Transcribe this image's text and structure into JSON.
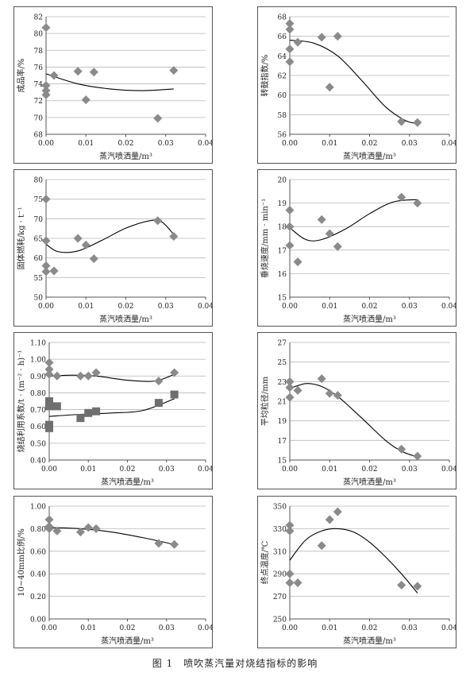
{
  "figure_caption": "图 1　喷吹蒸汽量对烧结指标的影响",
  "colors": {
    "diamond": "#8a8a8a",
    "square": "#6f6f6f",
    "grid": "#b8b8b8",
    "axis": "#555555",
    "curve": "#000000"
  },
  "chart_data": [
    {
      "type": "scatter",
      "xlabel": "蒸汽喷洒量/m³",
      "ylabel": "成品率/%",
      "xlim": [
        0,
        0.04
      ],
      "xticks": [
        "0.00",
        "0.01",
        "0.02",
        "0.03",
        "0.04"
      ],
      "ylim": [
        68,
        82
      ],
      "yticks": [
        "68",
        "70",
        "72",
        "74",
        "76",
        "78",
        "80",
        "82"
      ],
      "grid": "horizontal",
      "series": [
        {
          "marker": "diamond",
          "points": [
            [
              0,
              80.7
            ],
            [
              0,
              73.8
            ],
            [
              0,
              73.2
            ],
            [
              0,
              72.7
            ],
            [
              0.002,
              75.0
            ],
            [
              0.008,
              75.5
            ],
            [
              0.012,
              75.4
            ],
            [
              0.01,
              72.1
            ],
            [
              0.028,
              69.9
            ],
            [
              0.032,
              75.6
            ]
          ],
          "trend": [
            [
              0,
              75.2
            ],
            [
              0.008,
              74.0
            ],
            [
              0.016,
              73.4
            ],
            [
              0.024,
              73.2
            ],
            [
              0.032,
              73.4
            ]
          ]
        }
      ]
    },
    {
      "type": "scatter",
      "xlabel": "蒸汽喷洒量/m³",
      "ylabel": "转鼓指数/%",
      "xlim": [
        0,
        0.04
      ],
      "xticks": [
        "0.00",
        "0.01",
        "0.02",
        "0.03",
        "0.04"
      ],
      "ylim": [
        56,
        68
      ],
      "yticks": [
        "56",
        "58",
        "60",
        "62",
        "64",
        "66",
        "68"
      ],
      "grid": "horizontal",
      "series": [
        {
          "marker": "diamond",
          "points": [
            [
              0,
              67.3
            ],
            [
              0,
              66.7
            ],
            [
              0,
              64.7
            ],
            [
              0,
              63.4
            ],
            [
              0.002,
              65.4
            ],
            [
              0.008,
              65.9
            ],
            [
              0.012,
              66.0
            ],
            [
              0.01,
              60.8
            ],
            [
              0.028,
              57.3
            ],
            [
              0.032,
              57.2
            ]
          ],
          "trend": [
            [
              0,
              65.6
            ],
            [
              0.006,
              65.3
            ],
            [
              0.012,
              64.0
            ],
            [
              0.018,
              61.5
            ],
            [
              0.024,
              58.8
            ],
            [
              0.029,
              57.4
            ],
            [
              0.032,
              57.1
            ]
          ]
        }
      ]
    },
    {
      "type": "scatter",
      "xlabel": "蒸汽喷洒量/m³",
      "ylabel": "固体燃耗/kg · t⁻¹",
      "xlim": [
        0,
        0.04
      ],
      "xticks": [
        "0.00",
        "0.01",
        "0.02",
        "0.03",
        "0.04"
      ],
      "ylim": [
        50,
        80
      ],
      "yticks": [
        "50",
        "55",
        "60",
        "65",
        "70",
        "75",
        "80"
      ],
      "grid": "horizontal",
      "series": [
        {
          "marker": "diamond",
          "points": [
            [
              0,
              75.0
            ],
            [
              0,
              64.4
            ],
            [
              0,
              58.0
            ],
            [
              0,
              56.5
            ],
            [
              0.002,
              56.7
            ],
            [
              0.008,
              65.0
            ],
            [
              0.01,
              63.3
            ],
            [
              0.012,
              59.8
            ],
            [
              0.028,
              69.5
            ],
            [
              0.032,
              65.5
            ]
          ],
          "trend": [
            [
              0,
              63.5
            ],
            [
              0.003,
              61.6
            ],
            [
              0.008,
              61.8
            ],
            [
              0.014,
              64.5
            ],
            [
              0.02,
              67.6
            ],
            [
              0.026,
              69.5
            ],
            [
              0.029,
              69.2
            ],
            [
              0.032,
              66.0
            ]
          ]
        }
      ]
    },
    {
      "type": "scatter",
      "xlabel": "蒸汽喷洒量/m³",
      "ylabel": "垂烧速度/mm · min⁻¹",
      "xlim": [
        0,
        0.04
      ],
      "xticks": [
        "0.00",
        "0.01",
        "0.02",
        "0.03",
        "0.04"
      ],
      "ylim": [
        15,
        20
      ],
      "yticks": [
        "15",
        "16",
        "17",
        "18",
        "19",
        "20"
      ],
      "grid": "horizontal",
      "series": [
        {
          "marker": "diamond",
          "points": [
            [
              0,
              18.7
            ],
            [
              0,
              18.0
            ],
            [
              0,
              17.2
            ],
            [
              0.002,
              16.5
            ],
            [
              0.008,
              18.3
            ],
            [
              0.01,
              17.7
            ],
            [
              0.012,
              17.15
            ],
            [
              0.028,
              19.25
            ],
            [
              0.032,
              19.0
            ]
          ],
          "trend": [
            [
              0,
              17.95
            ],
            [
              0.004,
              17.45
            ],
            [
              0.008,
              17.45
            ],
            [
              0.014,
              17.9
            ],
            [
              0.02,
              18.55
            ],
            [
              0.026,
              19.05
            ],
            [
              0.032,
              19.15
            ]
          ]
        }
      ]
    },
    {
      "type": "scatter",
      "xlabel": "蒸汽喷洒量/m³",
      "ylabel": "烧结利用系数/t · (m⁻² · h)⁻¹",
      "xlim": [
        0,
        0.04
      ],
      "xticks": [
        "0.00",
        "0.01",
        "0.02",
        "0.03",
        "0.04"
      ],
      "ylim": [
        0.4,
        1.1
      ],
      "yticks": [
        "0.40",
        "0.50",
        "0.60",
        "0.70",
        "0.80",
        "0.90",
        "1.00",
        "1.10"
      ],
      "grid": "horizontal",
      "series": [
        {
          "marker": "diamond",
          "points": [
            [
              0,
              0.98
            ],
            [
              0,
              0.94
            ],
            [
              0,
              0.91
            ],
            [
              0.002,
              0.9
            ],
            [
              0.008,
              0.9
            ],
            [
              0.01,
              0.9
            ],
            [
              0.012,
              0.92
            ],
            [
              0.028,
              0.87
            ],
            [
              0.032,
              0.92
            ]
          ],
          "trend": [
            [
              0,
              0.9
            ],
            [
              0.006,
              0.905
            ],
            [
              0.012,
              0.9
            ],
            [
              0.02,
              0.875
            ],
            [
              0.027,
              0.87
            ],
            [
              0.032,
              0.91
            ]
          ]
        },
        {
          "marker": "square",
          "points": [
            [
              0,
              0.75
            ],
            [
              0,
              0.72
            ],
            [
              0,
              0.61
            ],
            [
              0,
              0.59
            ],
            [
              0.002,
              0.72
            ],
            [
              0.008,
              0.65
            ],
            [
              0.01,
              0.68
            ],
            [
              0.012,
              0.69
            ],
            [
              0.028,
              0.74
            ],
            [
              0.032,
              0.79
            ]
          ],
          "trend": [
            [
              0,
              0.66
            ],
            [
              0.008,
              0.672
            ],
            [
              0.016,
              0.68
            ],
            [
              0.024,
              0.695
            ],
            [
              0.032,
              0.765
            ]
          ]
        }
      ]
    },
    {
      "type": "scatter",
      "xlabel": "蒸汽喷洒量/m³",
      "ylabel": "平均粒径/mm",
      "xlim": [
        0,
        0.04
      ],
      "xticks": [
        "0.00",
        "0.01",
        "0.02",
        "0.03",
        "0.04"
      ],
      "ylim": [
        15,
        27
      ],
      "yticks": [
        "15",
        "17",
        "19",
        "21",
        "23",
        "25",
        "27"
      ],
      "grid": "horizontal",
      "series": [
        {
          "marker": "diamond",
          "points": [
            [
              0,
              23.0
            ],
            [
              0,
              22.4
            ],
            [
              0,
              21.4
            ],
            [
              0.002,
              22.1
            ],
            [
              0.008,
              23.3
            ],
            [
              0.01,
              21.8
            ],
            [
              0.012,
              21.6
            ],
            [
              0.028,
              16.1
            ],
            [
              0.032,
              15.4
            ]
          ],
          "trend": [
            [
              0,
              22.3
            ],
            [
              0.004,
              22.8
            ],
            [
              0.008,
              22.5
            ],
            [
              0.012,
              21.5
            ],
            [
              0.018,
              19.3
            ],
            [
              0.024,
              17.0
            ],
            [
              0.028,
              15.9
            ],
            [
              0.032,
              15.3
            ]
          ]
        }
      ]
    },
    {
      "type": "scatter",
      "xlabel": "蒸汽喷洒量/m³",
      "ylabel": "10~40mm比例/%",
      "xlim": [
        0,
        0.04
      ],
      "xticks": [
        "0.00",
        "0.01",
        "0.02",
        "0.03",
        "0.04"
      ],
      "ylim": [
        0,
        1.0
      ],
      "yticks": [
        "0.00",
        "0.20",
        "0.40",
        "0.60",
        "0.80",
        "1.00"
      ],
      "grid": "horizontal",
      "series": [
        {
          "marker": "diamond",
          "points": [
            [
              0,
              0.88
            ],
            [
              0,
              0.82
            ],
            [
              0,
              0.8
            ],
            [
              0.002,
              0.78
            ],
            [
              0.008,
              0.77
            ],
            [
              0.01,
              0.81
            ],
            [
              0.012,
              0.8
            ],
            [
              0.028,
              0.67
            ],
            [
              0.032,
              0.66
            ]
          ],
          "trend": [
            [
              0,
              0.81
            ],
            [
              0.008,
              0.8
            ],
            [
              0.016,
              0.77
            ],
            [
              0.024,
              0.72
            ],
            [
              0.032,
              0.66
            ]
          ]
        }
      ]
    },
    {
      "type": "scatter",
      "xlabel": "蒸汽喷洒量/m³",
      "ylabel": "终点温度/℃",
      "xlim": [
        0,
        0.04
      ],
      "xticks": [
        "0.00",
        "0.01",
        "0.02",
        "0.03",
        "0.04"
      ],
      "ylim": [
        250,
        350
      ],
      "yticks": [
        "250",
        "270",
        "290",
        "310",
        "330",
        "350"
      ],
      "grid": "horizontal",
      "series": [
        {
          "marker": "diamond",
          "points": [
            [
              0,
              333
            ],
            [
              0,
              328
            ],
            [
              0,
              290
            ],
            [
              0,
              282
            ],
            [
              0.002,
              282
            ],
            [
              0.008,
              315
            ],
            [
              0.01,
              338
            ],
            [
              0.012,
              345
            ],
            [
              0.028,
              280
            ],
            [
              0.032,
              279
            ]
          ],
          "trend": [
            [
              0,
              302
            ],
            [
              0.004,
              320
            ],
            [
              0.008,
              328
            ],
            [
              0.012,
              330
            ],
            [
              0.016,
              327
            ],
            [
              0.02,
              318
            ],
            [
              0.024,
              305
            ],
            [
              0.028,
              290
            ],
            [
              0.032,
              273
            ]
          ]
        }
      ]
    }
  ]
}
